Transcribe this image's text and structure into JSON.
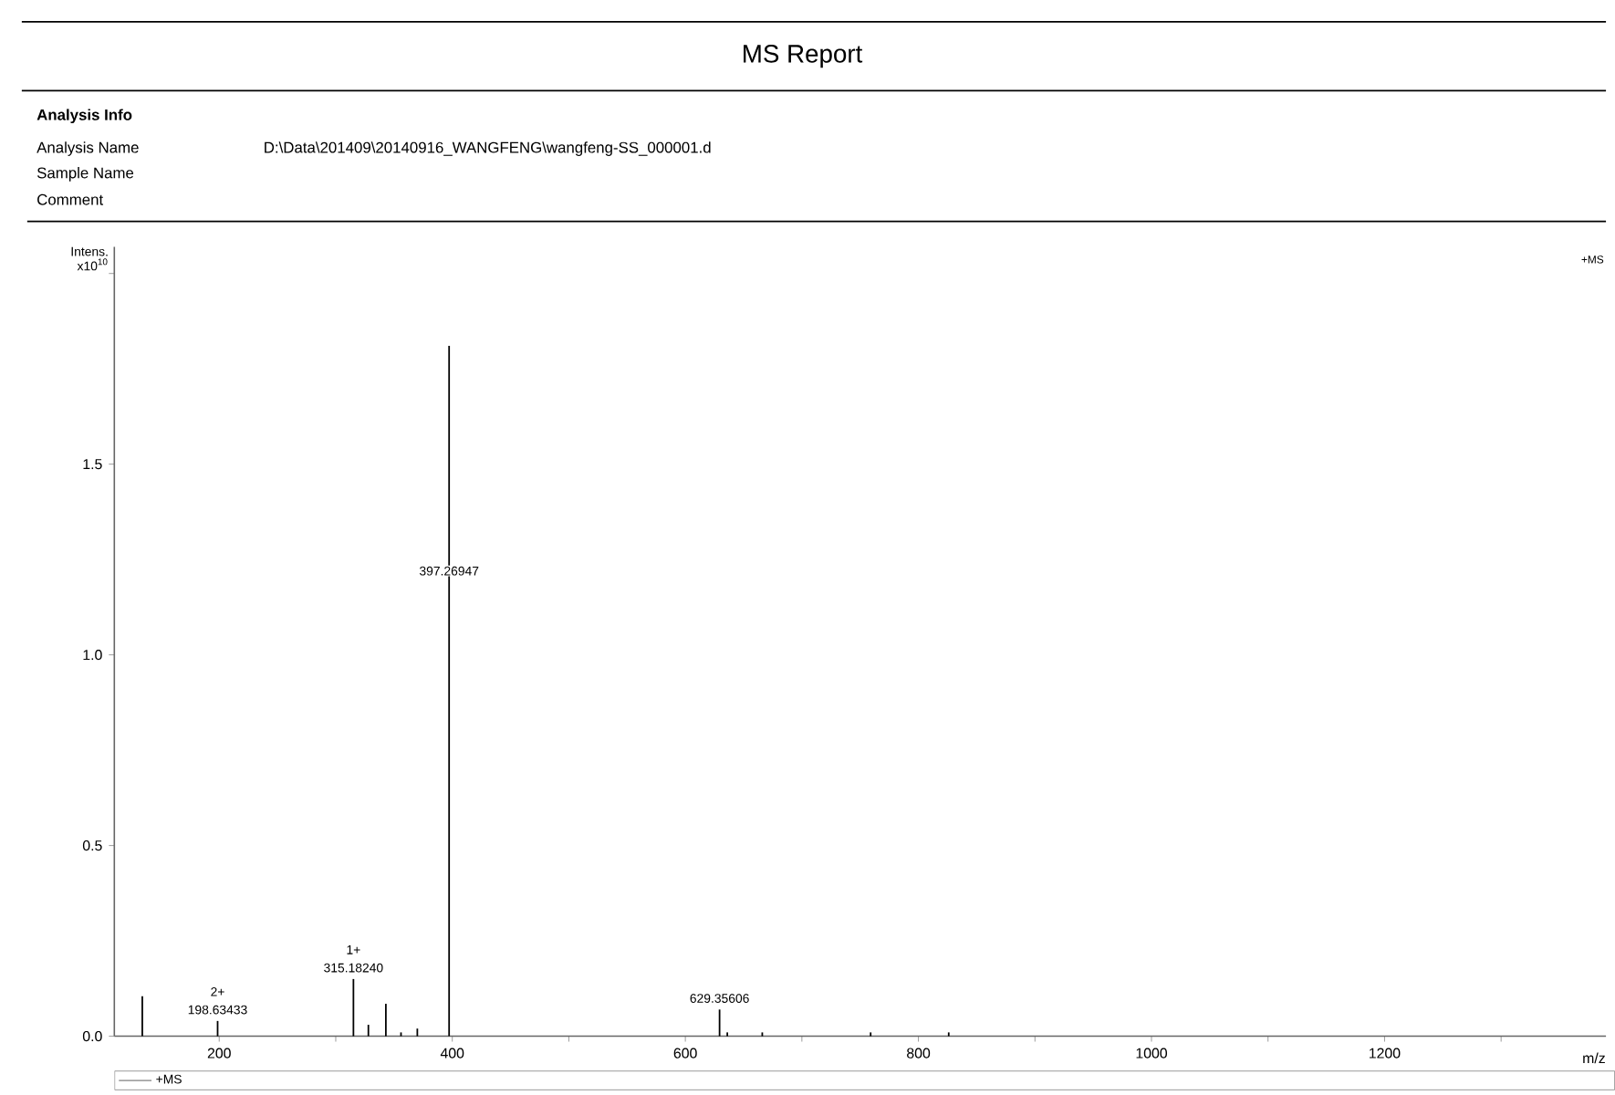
{
  "chart_data": {
    "type": "bar",
    "title": "MS Report",
    "xlabel": "m/z",
    "ylabel": "Intens. x10$^{10}$",
    "x": [
      134,
      198.63,
      315.18,
      328,
      343,
      356,
      370,
      397.27,
      629.36,
      636,
      666,
      759,
      826
    ],
    "series": [
      {
        "name": "+MS",
        "color": "#000000",
        "values": [
          0.105,
          0.04,
          0.15,
          0.03,
          0.085,
          0.01,
          0.02,
          1.81,
          0.07,
          0.01,
          0.01,
          0.01,
          0.01
        ]
      }
    ],
    "xlim": [
      110,
      1390
    ],
    "ylim": [
      0,
      2.07
    ],
    "xticks": [
      {
        "value": 200,
        "label": "200"
      },
      {
        "value": 300,
        "label": null
      },
      {
        "value": 400,
        "label": "400"
      },
      {
        "value": 500,
        "label": null
      },
      {
        "value": 600,
        "label": "600"
      },
      {
        "value": 700,
        "label": null
      },
      {
        "value": 800,
        "label": "800"
      },
      {
        "value": 900,
        "label": null
      },
      {
        "value": 1000,
        "label": "1000"
      },
      {
        "value": 1100,
        "label": null
      },
      {
        "value": 1200,
        "label": "1200"
      },
      {
        "value": 1300,
        "label": null
      }
    ],
    "yticks": [
      {
        "value": 0,
        "label": "0.0"
      },
      {
        "value": 0.5,
        "label": "0.5"
      },
      {
        "value": 1.0,
        "label": "1.0"
      },
      {
        "value": 1.5,
        "label": "1.5"
      },
      {
        "value": 2.0,
        "label": null
      }
    ],
    "grid": false,
    "legend": "bottom left",
    "annotations": [
      "Analysis Info",
      "Analysis Name",
      "D:\\Data\\201409\\20140916_WANGFENG\\wangfeng-SS_000001.d",
      "Sample Name",
      "Comment",
      "+MS",
      {
        "text": "397.26947",
        "x": 397.27,
        "y": 1.22
      },
      {
        "text": "1+",
        "x": 315.18,
        "y": 0.15
      },
      {
        "text": "315.18240",
        "x": 315.18,
        "y": 0.15
      },
      {
        "text": "2+",
        "x": 198.63,
        "y": 0.04
      },
      {
        "text": "198.63433",
        "x": 198.63,
        "y": 0.04
      },
      {
        "text": "629.35606",
        "x": 629.36,
        "y": 0.07
      }
    ]
  }
}
